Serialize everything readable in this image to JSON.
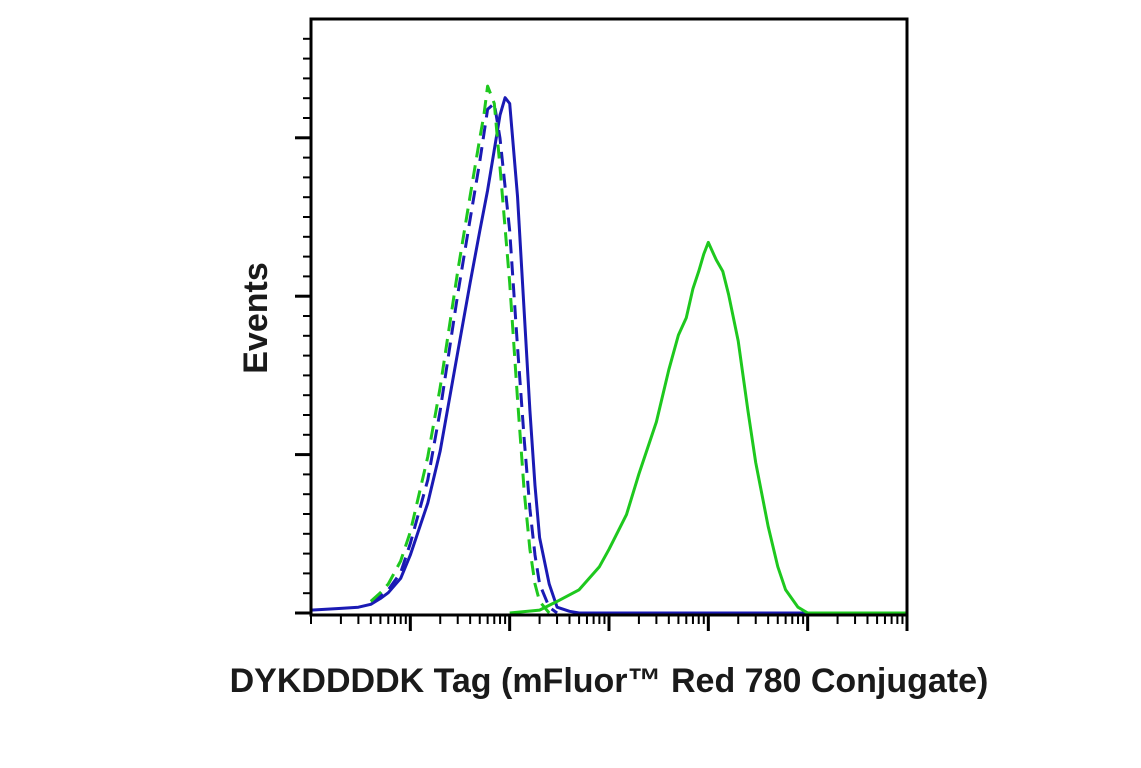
{
  "chart_data": {
    "type": "line",
    "title": "",
    "xlabel": "DYKDDDDK Tag (mFluor™ Red 780 Conjugate)",
    "ylabel": "Events",
    "x_scale": "log",
    "xlim": [
      10,
      10000000
    ],
    "ylim": [
      0,
      100
    ],
    "grid": false,
    "legend": "none",
    "tick_labels_shown": false,
    "series": [
      {
        "color": "#1a1ab4",
        "dash": "solid",
        "x": [
          10,
          20,
          30,
          40,
          50,
          60,
          80,
          100,
          150,
          200,
          300,
          400,
          500,
          600,
          700,
          800,
          900,
          1000,
          1200,
          1400,
          1600,
          1800,
          2000,
          2500,
          3000,
          4000,
          5000,
          10000,
          100000,
          1000000,
          10000000
        ],
        "y": [
          0.5,
          0.8,
          1,
          1.5,
          2.5,
          3.5,
          6,
          10,
          19,
          28,
          45,
          57,
          66,
          73,
          80,
          86,
          89,
          88,
          72,
          52,
          35,
          22,
          13,
          5,
          1,
          0.3,
          0,
          0,
          0,
          0,
          0
        ]
      },
      {
        "color": "#1a1ab4",
        "dash": "dashed",
        "x": [
          40,
          50,
          60,
          80,
          100,
          150,
          200,
          300,
          400,
          500,
          600,
          700,
          800,
          1000,
          1200,
          1400,
          1600,
          1800,
          2000,
          2500,
          3000
        ],
        "y": [
          2,
          3,
          4,
          7,
          12,
          23,
          35,
          55,
          68,
          78,
          87,
          88,
          82,
          66,
          46,
          30,
          18,
          10,
          5,
          1,
          0
        ]
      },
      {
        "color": "#1ec81e",
        "dash": "dashed",
        "x": [
          40,
          50,
          60,
          80,
          100,
          150,
          200,
          300,
          400,
          500,
          550,
          600,
          700,
          800,
          1000,
          1200,
          1400,
          1600,
          1800,
          2000,
          2500
        ],
        "y": [
          2,
          3.5,
          5,
          9,
          14,
          27,
          39,
          59,
          72,
          82,
          86,
          91,
          88,
          77,
          57,
          37,
          21,
          11,
          5,
          2,
          0
        ]
      },
      {
        "color": "#1ec81e",
        "dash": "solid",
        "x": [
          1000,
          2000,
          3000,
          5000,
          8000,
          10000,
          15000,
          20000,
          30000,
          40000,
          50000,
          60000,
          70000,
          80000,
          90000,
          100000,
          120000,
          140000,
          160000,
          200000,
          250000,
          300000,
          400000,
          500000,
          600000,
          800000,
          1000000,
          2000000,
          10000000
        ],
        "y": [
          0,
          0.5,
          2,
          4,
          8,
          11,
          17,
          24,
          33,
          42,
          48,
          51,
          56,
          59,
          62,
          64,
          61,
          59,
          55,
          47,
          35,
          26,
          15,
          8,
          4,
          1,
          0,
          0,
          0
        ]
      }
    ]
  }
}
